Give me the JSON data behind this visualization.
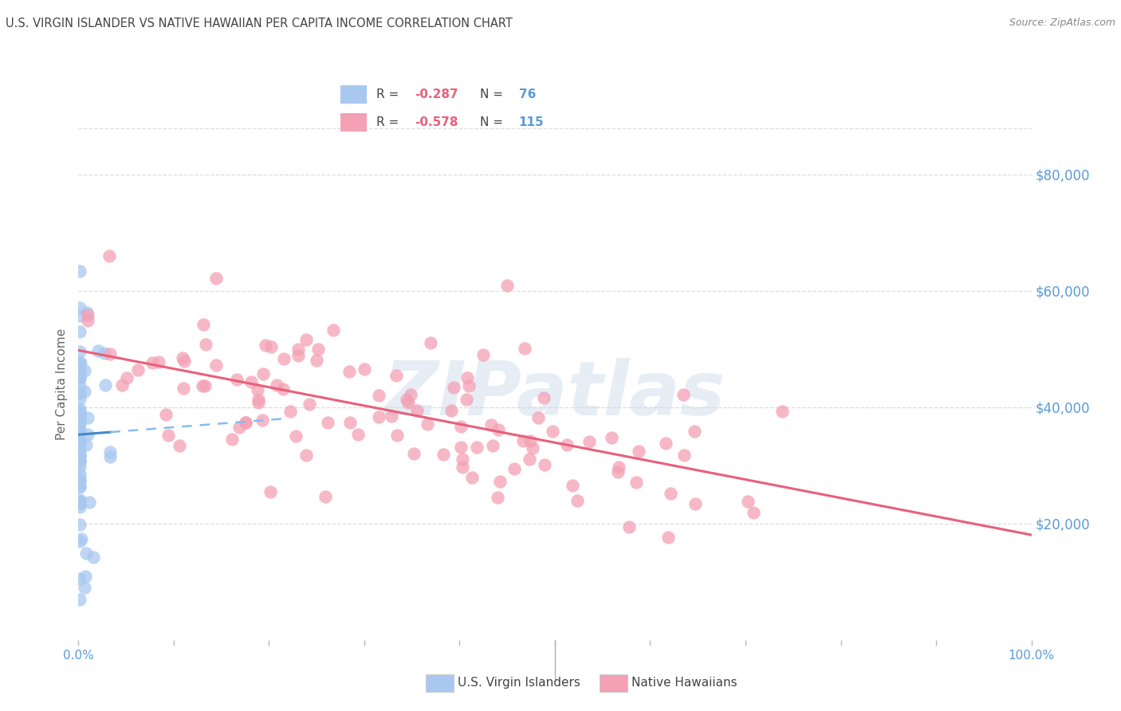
{
  "title": "U.S. VIRGIN ISLANDER VS NATIVE HAWAIIAN PER CAPITA INCOME CORRELATION CHART",
  "source": "Source: ZipAtlas.com",
  "ylabel": "Per Capita Income",
  "yticks": [
    20000,
    40000,
    60000,
    80000
  ],
  "ytick_labels": [
    "$20,000",
    "$40,000",
    "$60,000",
    "$80,000"
  ],
  "xlim": [
    0.0,
    1.0
  ],
  "ylim": [
    0,
    88000
  ],
  "group1_label": "U.S. Virgin Islanders",
  "group1_color": "#a8c8f0",
  "group1_line_color": "#4488cc",
  "group1_dash_color": "#88bbee",
  "group1_R": -0.287,
  "group1_N": 76,
  "group2_label": "Native Hawaiians",
  "group2_color": "#f4a0b5",
  "group2_line_color": "#e8607a",
  "group2_R": -0.578,
  "group2_N": 115,
  "watermark": "ZIPatlas",
  "background_color": "#ffffff",
  "r_color": "#e8607a",
  "n_color": "#5a9bd5",
  "title_color": "#444444",
  "source_color": "#888888",
  "ylabel_color": "#666666",
  "xtick_color": "#5a9bd5",
  "ytick_color": "#5a9bd5",
  "grid_color": "#dddddd"
}
